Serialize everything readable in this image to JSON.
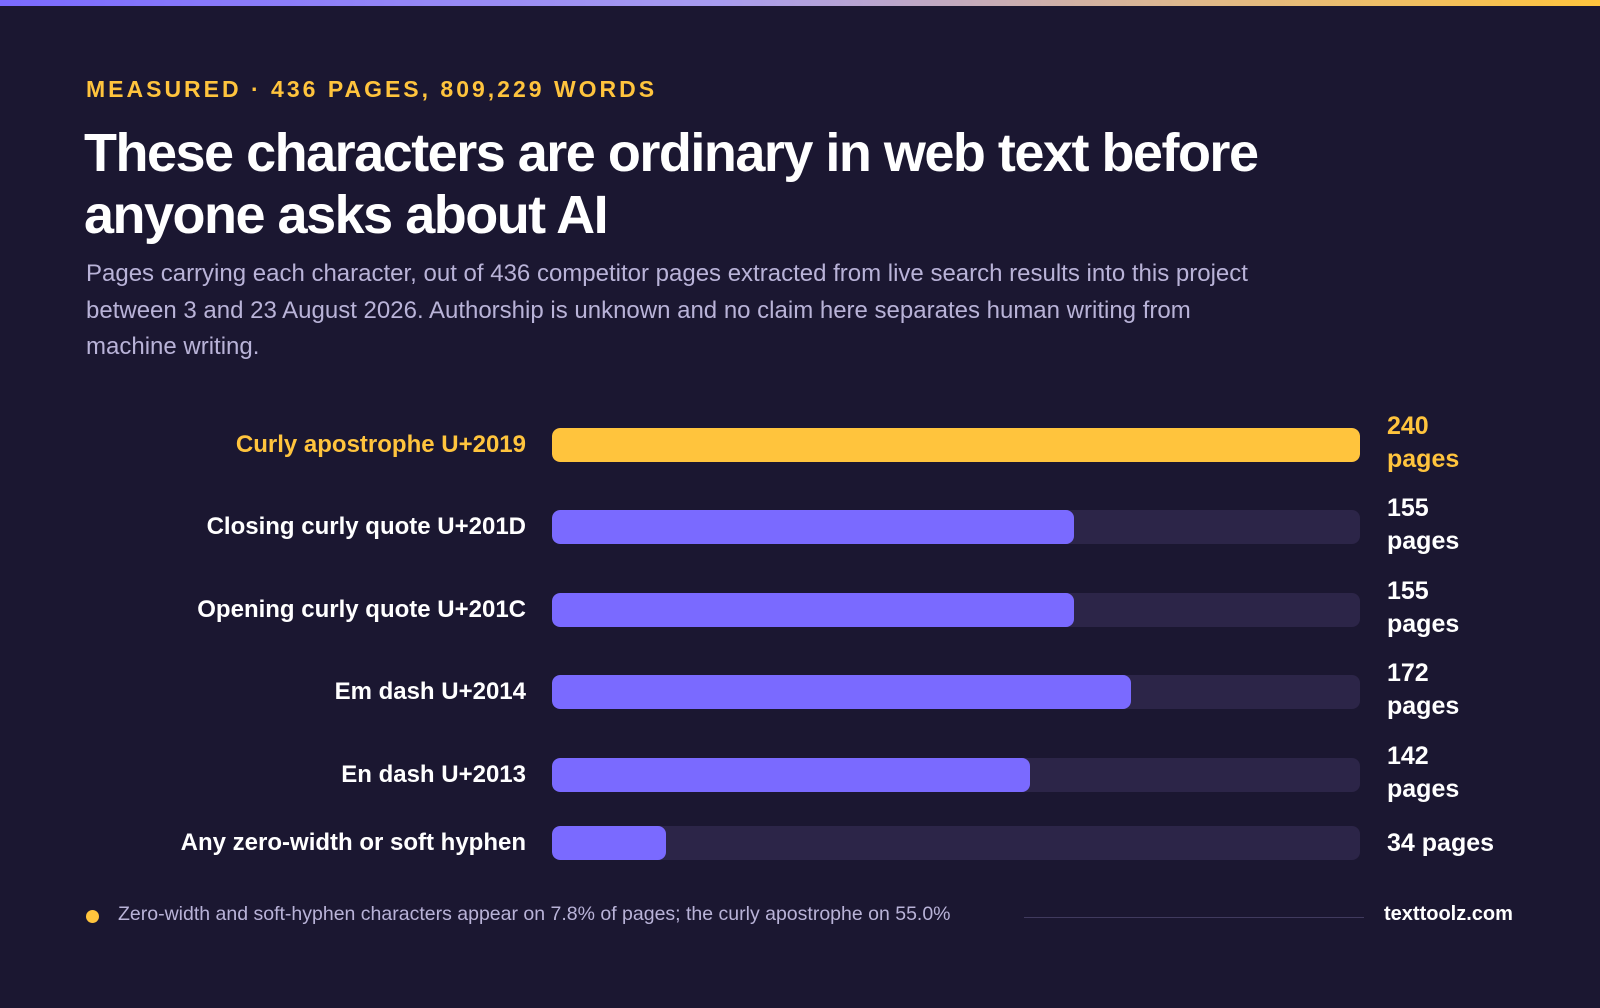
{
  "header": {
    "eyebrow": "MEASURED · 436 PAGES, 809,229 WORDS",
    "title": "These characters are ordinary in web text before anyone asks about AI",
    "subtitle": "Pages carrying each character, out of 436 competitor pages extracted from live search results into this project between 3 and 23 August 2026. Authorship is unknown and no claim here separates human writing from machine writing."
  },
  "chart_data": {
    "type": "bar",
    "orientation": "horizontal",
    "xlim": [
      0,
      240
    ],
    "unit": "pages",
    "categories": [
      "Curly apostrophe U+2019",
      "Closing curly quote U+201D",
      "Opening curly quote U+201C",
      "Em dash U+2014",
      "En dash U+2013",
      "Any zero-width or soft hyphen"
    ],
    "values": [
      240,
      155,
      155,
      172,
      142,
      34
    ],
    "highlight_index": 0,
    "colors": {
      "highlight": "#ffc43d",
      "bar": "#7a6aff",
      "track": "#2c2548"
    }
  },
  "footer": {
    "note": "Zero-width and soft-hyphen characters appear on 7.8% of pages; the curly apostrophe on 55.0%",
    "brand": "texttoolz.com"
  }
}
